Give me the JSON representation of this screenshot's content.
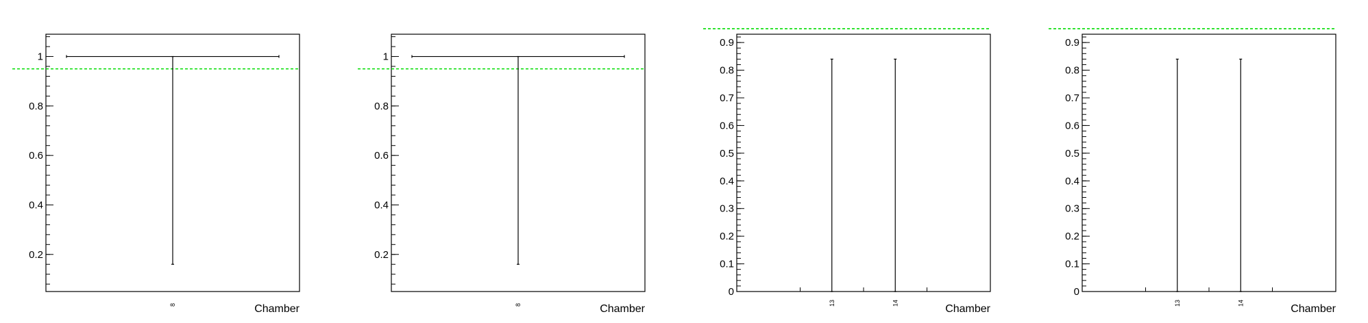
{
  "colors": {
    "frame": "#000000",
    "reference_line": "#00dd00",
    "points": "#000000"
  },
  "chart_data": [
    {
      "type": "scatter",
      "title": "",
      "xlabel": "Chamber",
      "ylabel": "",
      "categories": [
        "8"
      ],
      "ylim": [
        0.05,
        1.09
      ],
      "yticks": [
        0.2,
        0.4,
        0.6,
        0.8,
        1
      ],
      "ytick_labels": [
        "0.2",
        "0.4",
        "0.6",
        "0.8",
        "1"
      ],
      "reference_line": 0.95,
      "points": [
        {
          "category": "8",
          "value": 1.0,
          "err_low": 0.84,
          "err_high": 0.0
        }
      ],
      "grid": false
    },
    {
      "type": "scatter",
      "title": "",
      "xlabel": "Chamber",
      "ylabel": "",
      "categories": [
        "8"
      ],
      "ylim": [
        0.05,
        1.09
      ],
      "yticks": [
        0.2,
        0.4,
        0.6,
        0.8,
        1
      ],
      "ytick_labels": [
        "0.2",
        "0.4",
        "0.6",
        "0.8",
        "1"
      ],
      "reference_line": 0.95,
      "points": [
        {
          "category": "8",
          "value": 1.0,
          "err_low": 0.84,
          "err_high": 0.0
        }
      ],
      "grid": false
    },
    {
      "type": "scatter",
      "title": "",
      "xlabel": "Chamber",
      "ylabel": "",
      "categories": [
        "13",
        "14"
      ],
      "ylim": [
        0,
        0.93
      ],
      "yticks": [
        0,
        0.1,
        0.2,
        0.3,
        0.4,
        0.5,
        0.6,
        0.7,
        0.8,
        0.9
      ],
      "ytick_labels": [
        "0",
        "0.1",
        "0.2",
        "0.3",
        "0.4",
        "0.5",
        "0.6",
        "0.7",
        "0.8",
        "0.9"
      ],
      "reference_line": 0.95,
      "points": [
        {
          "category": "13",
          "value": 0.0,
          "err_low": 0.0,
          "err_high": 0.84
        },
        {
          "category": "14",
          "value": 0.0,
          "err_low": 0.0,
          "err_high": 0.84
        }
      ],
      "grid": false
    },
    {
      "type": "scatter",
      "title": "",
      "xlabel": "Chamber",
      "ylabel": "",
      "categories": [
        "13",
        "14"
      ],
      "ylim": [
        0,
        0.93
      ],
      "yticks": [
        0,
        0.1,
        0.2,
        0.3,
        0.4,
        0.5,
        0.6,
        0.7,
        0.8,
        0.9
      ],
      "ytick_labels": [
        "0",
        "0.1",
        "0.2",
        "0.3",
        "0.4",
        "0.5",
        "0.6",
        "0.7",
        "0.8",
        "0.9"
      ],
      "reference_line": 0.95,
      "points": [
        {
          "category": "13",
          "value": 0.0,
          "err_low": 0.0,
          "err_high": 0.84
        },
        {
          "category": "14",
          "value": 0.0,
          "err_low": 0.0,
          "err_high": 0.84
        }
      ],
      "grid": false
    }
  ]
}
